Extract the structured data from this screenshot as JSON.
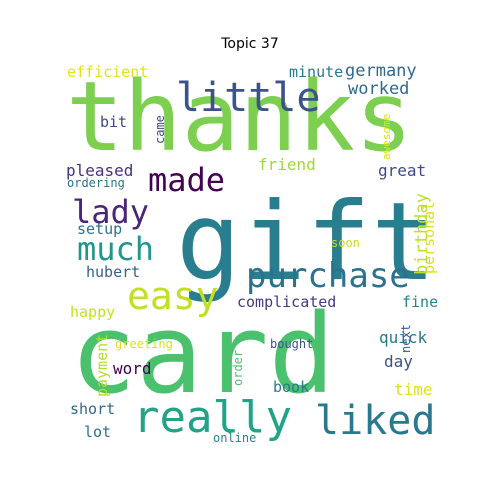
{
  "title": "Topic 37",
  "words": [
    {
      "text": "thanks",
      "color": "#7ccf4f"
    },
    {
      "text": "gift",
      "color": "#287d8e"
    },
    {
      "text": "card",
      "color": "#4ac16d"
    },
    {
      "text": "really",
      "color": "#20a386"
    },
    {
      "text": "purchase",
      "color": "#2c728e"
    },
    {
      "text": "little",
      "color": "#3b528b"
    },
    {
      "text": "much",
      "color": "#1f988b"
    },
    {
      "text": "easy",
      "color": "#c2df23"
    },
    {
      "text": "made",
      "color": "#440154"
    },
    {
      "text": "lady",
      "color": "#482576"
    },
    {
      "text": "liked",
      "color": "#2a788e"
    },
    {
      "text": "complicated",
      "color": "#443a83"
    },
    {
      "text": "germany",
      "color": "#31688e"
    },
    {
      "text": "minute",
      "color": "#2a788e"
    },
    {
      "text": "worked",
      "color": "#31688e"
    },
    {
      "text": "efficient",
      "color": "#e2e418"
    },
    {
      "text": "bit",
      "color": "#3e4a89"
    },
    {
      "text": "friend",
      "color": "#a0da39"
    },
    {
      "text": "pleased",
      "color": "#46327e"
    },
    {
      "text": "great",
      "color": "#3e4a89"
    },
    {
      "text": "setup",
      "color": "#2c728e"
    },
    {
      "text": "hubert",
      "color": "#355f8d"
    },
    {
      "text": "personal",
      "color": "#dde318"
    },
    {
      "text": "birthday",
      "color": "#bddf26"
    },
    {
      "text": "happy",
      "color": "#c8e020"
    },
    {
      "text": "fine",
      "color": "#25848e"
    },
    {
      "text": "quick",
      "color": "#2a788e"
    },
    {
      "text": "day",
      "color": "#3b528b"
    },
    {
      "text": "time",
      "color": "#dde318"
    },
    {
      "text": "word",
      "color": "#440154"
    },
    {
      "text": "book",
      "color": "#2a788e"
    },
    {
      "text": "short",
      "color": "#31688e"
    },
    {
      "text": "lot",
      "color": "#2c728e"
    },
    {
      "text": "payment",
      "color": "#b5de2b"
    },
    {
      "text": "greeting",
      "color": "#d8e219"
    },
    {
      "text": "order",
      "color": "#52c569"
    },
    {
      "text": "bought",
      "color": "#3b528b"
    },
    {
      "text": "online",
      "color": "#25848e"
    },
    {
      "text": "next",
      "color": "#38588c"
    },
    {
      "text": "soon",
      "color": "#c8e020"
    },
    {
      "text": "came",
      "color": "#3e4a89"
    },
    {
      "text": "awesome",
      "color": "#dde318"
    },
    {
      "text": "ordering",
      "color": "#2c728e"
    }
  ]
}
